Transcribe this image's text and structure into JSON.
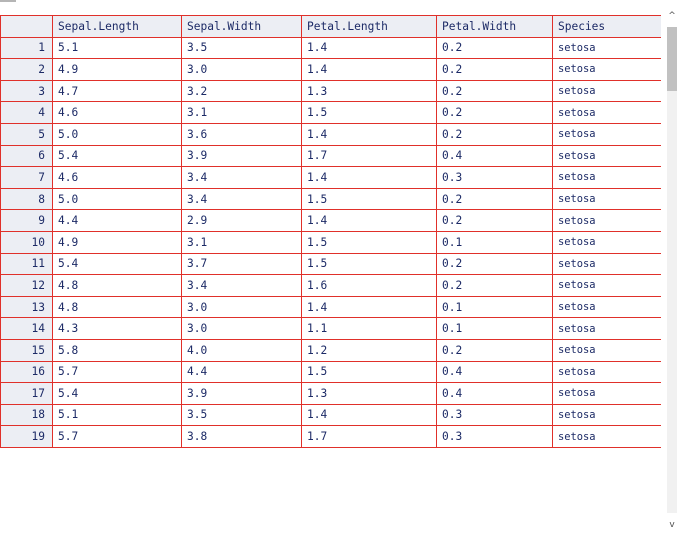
{
  "grid": {
    "columns": [
      "",
      "Sepal.Length",
      "Sepal.Width",
      "Petal.Length",
      "Petal.Width",
      "Species"
    ],
    "rows": [
      [
        "1",
        "5.1",
        "3.5",
        "1.4",
        "0.2",
        "setosa"
      ],
      [
        "2",
        "4.9",
        "3.0",
        "1.4",
        "0.2",
        "setosa"
      ],
      [
        "3",
        "4.7",
        "3.2",
        "1.3",
        "0.2",
        "setosa"
      ],
      [
        "4",
        "4.6",
        "3.1",
        "1.5",
        "0.2",
        "setosa"
      ],
      [
        "5",
        "5.0",
        "3.6",
        "1.4",
        "0.2",
        "setosa"
      ],
      [
        "6",
        "5.4",
        "3.9",
        "1.7",
        "0.4",
        "setosa"
      ],
      [
        "7",
        "4.6",
        "3.4",
        "1.4",
        "0.3",
        "setosa"
      ],
      [
        "8",
        "5.0",
        "3.4",
        "1.5",
        "0.2",
        "setosa"
      ],
      [
        "9",
        "4.4",
        "2.9",
        "1.4",
        "0.2",
        "setosa"
      ],
      [
        "10",
        "4.9",
        "3.1",
        "1.5",
        "0.1",
        "setosa"
      ],
      [
        "11",
        "5.4",
        "3.7",
        "1.5",
        "0.2",
        "setosa"
      ],
      [
        "12",
        "4.8",
        "3.4",
        "1.6",
        "0.2",
        "setosa"
      ],
      [
        "13",
        "4.8",
        "3.0",
        "1.4",
        "0.1",
        "setosa"
      ],
      [
        "14",
        "4.3",
        "3.0",
        "1.1",
        "0.1",
        "setosa"
      ],
      [
        "15",
        "5.8",
        "4.0",
        "1.2",
        "0.2",
        "setosa"
      ],
      [
        "16",
        "5.7",
        "4.4",
        "1.5",
        "0.4",
        "setosa"
      ],
      [
        "17",
        "5.4",
        "3.9",
        "1.3",
        "0.4",
        "setosa"
      ],
      [
        "18",
        "5.1",
        "3.5",
        "1.4",
        "0.3",
        "setosa"
      ],
      [
        "19",
        "5.7",
        "3.8",
        "1.7",
        "0.3",
        "setosa"
      ]
    ]
  },
  "scrollbar": {
    "up_icon": "chevron-up-icon",
    "down_icon": "chevron-down-icon",
    "up_glyph": "^",
    "down_glyph": "v",
    "position_fraction": 0.0
  },
  "colors": {
    "grid_border": "#e0302a",
    "header_background": "#eceef4",
    "text": "#1c2a66"
  }
}
